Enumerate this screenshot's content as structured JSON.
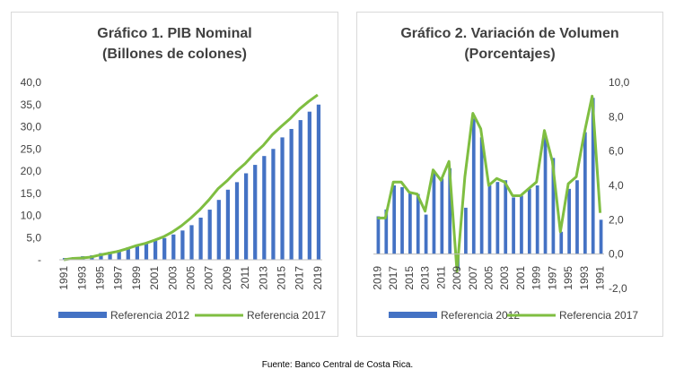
{
  "source_note": "Fuente: Banco Central de Costa Rica.",
  "colors": {
    "bar": "#4472c4",
    "line": "#7fbe41",
    "gridline": "#d9d9d9",
    "axis": "#bfbfbf"
  },
  "chart_data": [
    {
      "type": "bar",
      "title_line1": "Gráfico 1. PIB Nominal",
      "title_line2": "(Billones de colones)",
      "categories": [
        "1991",
        "1992",
        "1993",
        "1994",
        "1995",
        "1996",
        "1997",
        "1998",
        "1999",
        "2000",
        "2001",
        "2002",
        "2003",
        "2004",
        "2005",
        "2006",
        "2007",
        "2008",
        "2009",
        "2010",
        "2011",
        "2012",
        "2013",
        "2014",
        "2015",
        "2016",
        "2017",
        "2018",
        "2019"
      ],
      "category_tick_labels": [
        "1991",
        "1993",
        "1995",
        "1997",
        "1999",
        "2001",
        "2003",
        "2005",
        "2007",
        "2009",
        "2011",
        "2013",
        "2015",
        "2017",
        "2019"
      ],
      "ylim": [
        0,
        40
      ],
      "y_ticks": [
        "-",
        "5,0",
        "10,0",
        "15,0",
        "20,0",
        "25,0",
        "30,0",
        "35,0",
        "40,0"
      ],
      "grid": false,
      "legend_position": "bottom",
      "series": [
        {
          "name": "Referencia 2012",
          "kind": "bar",
          "values": [
            0.4,
            0.6,
            0.8,
            1.0,
            1.5,
            1.8,
            2.2,
            2.8,
            3.4,
            3.9,
            4.3,
            4.9,
            5.7,
            6.6,
            7.8,
            9.5,
            11.3,
            13.5,
            15.8,
            17.5,
            19.5,
            21.4,
            23.4,
            25.0,
            27.6,
            29.5,
            31.5,
            33.4,
            35.0
          ]
        },
        {
          "name": "Referencia 2017",
          "kind": "line",
          "values": [
            0.0,
            0.3,
            0.4,
            0.6,
            1.1,
            1.5,
            1.9,
            2.5,
            3.2,
            3.7,
            4.4,
            5.2,
            6.3,
            7.7,
            9.4,
            11.3,
            13.5,
            16.0,
            17.8,
            19.9,
            21.7,
            23.9,
            25.8,
            28.2,
            30.1,
            31.9,
            34.0,
            35.7,
            37.2
          ]
        }
      ]
    },
    {
      "type": "bar",
      "title_line1": "Gráfico 2. Variación de Volumen",
      "title_line2": "(Porcentajes)",
      "categories": [
        "2019",
        "2018",
        "2017",
        "2016",
        "2015",
        "2014",
        "2013",
        "2012",
        "2011",
        "2010",
        "2009",
        "2008",
        "2007",
        "2006",
        "2005",
        "2004",
        "2003",
        "2002",
        "2001",
        "2000",
        "1999",
        "1998",
        "1997",
        "1996",
        "1995",
        "1994",
        "1993",
        "1992",
        "1991"
      ],
      "category_tick_labels": [
        "2019",
        "2017",
        "2015",
        "2013",
        "2011",
        "2009",
        "2007",
        "2005",
        "2003",
        "2001",
        "1999",
        "1997",
        "1995",
        "1993",
        "1991"
      ],
      "ylim": [
        -2,
        10
      ],
      "y_ticks": [
        "-2,0",
        "0,0",
        "2,0",
        "4,0",
        "6,0",
        "8,0",
        "10,0"
      ],
      "y_axis_side": "right",
      "grid": false,
      "legend_position": "bottom",
      "series": [
        {
          "name": "Referencia 2012",
          "kind": "bar",
          "values": [
            2.2,
            2.6,
            4.0,
            3.9,
            3.6,
            3.5,
            2.3,
            4.8,
            4.4,
            5.0,
            -0.9,
            2.7,
            7.9,
            6.8,
            4.0,
            4.2,
            4.3,
            3.3,
            3.4,
            3.8,
            4.0,
            6.9,
            5.6,
            1.3,
            3.8,
            4.3,
            7.1,
            9.1,
            2.0
          ]
        },
        {
          "name": "Referencia 2017",
          "kind": "line",
          "values": [
            2.1,
            2.1,
            4.2,
            4.2,
            3.6,
            3.5,
            2.5,
            4.9,
            4.3,
            5.4,
            -1.0,
            4.5,
            8.2,
            7.3,
            4.0,
            4.4,
            4.2,
            3.4,
            3.4,
            3.8,
            4.2,
            7.2,
            5.4,
            1.3,
            4.1,
            4.5,
            7.0,
            9.2,
            2.4
          ]
        }
      ]
    }
  ]
}
